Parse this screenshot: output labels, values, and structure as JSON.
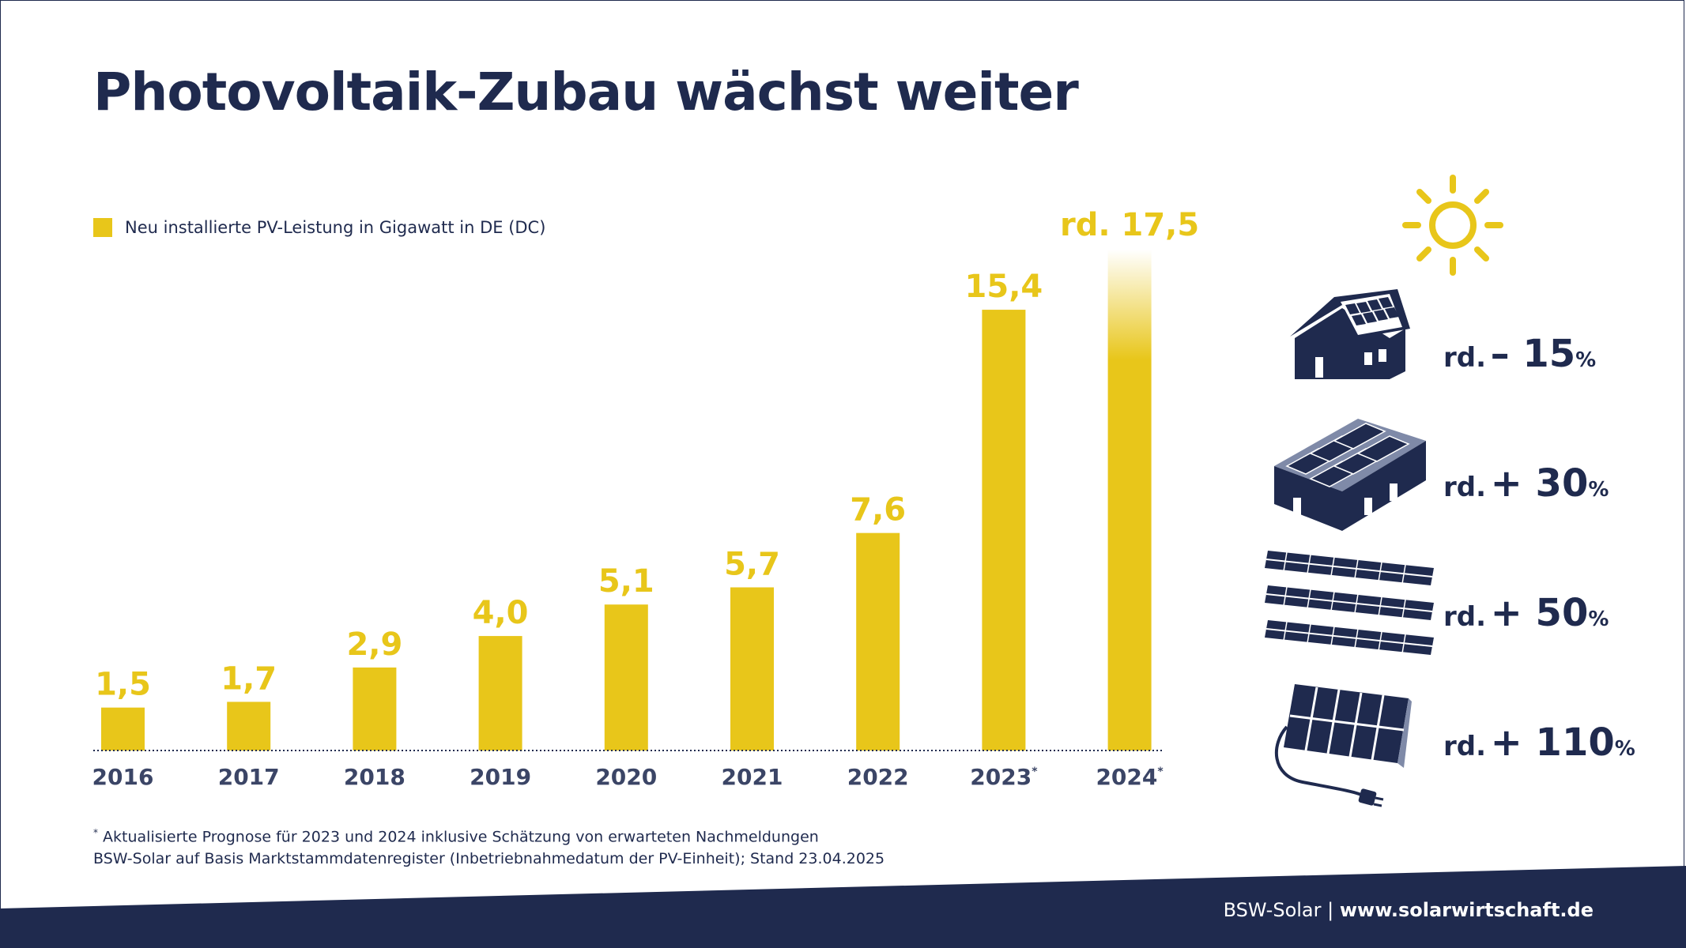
{
  "title": "Photovoltaik-Zubau wächst weiter",
  "legend_label": "Neu installierte PV-Leistung in Gigawatt in DE (DC)",
  "colors": {
    "bar": "#e8c61a",
    "navy": "#1f2a4e",
    "year_text": "#3b4566"
  },
  "chart_data": {
    "type": "bar",
    "categories": [
      "2016",
      "2017",
      "2018",
      "2019",
      "2020",
      "2021",
      "2022",
      "2023*",
      "2024*"
    ],
    "values": [
      1.5,
      1.7,
      2.9,
      4.0,
      5.1,
      5.7,
      7.6,
      15.4,
      17.5
    ],
    "value_labels": [
      "1,5",
      "1,7",
      "2,9",
      "4,0",
      "5,1",
      "5,7",
      "7,6",
      "15,4",
      "rd. 17,5"
    ],
    "series": [
      {
        "name": "Neu installierte PV-Leistung in Gigawatt in DE (DC)",
        "values": [
          1.5,
          1.7,
          2.9,
          4.0,
          5.1,
          5.7,
          7.6,
          15.4,
          17.5
        ]
      }
    ],
    "ylim": [
      0,
      17.5
    ],
    "grid": false,
    "legend_position": "top-left",
    "last_bar_faded_top": true
  },
  "footnote": {
    "marker": "*",
    "line1": "Aktualisierte Prognose für 2023 und 2024 inklusive Schätzung von erwarteten Nachmeldungen",
    "line2": "BSW-Solar auf Basis Marktstammdatenregister (Inbetriebnahmedatum der PV-Einheit); Stand 23.04.2025"
  },
  "segments": [
    {
      "icon": "house-rooftop-pv-icon",
      "prefix": "rd.",
      "value": "– 15",
      "unit": "%"
    },
    {
      "icon": "commercial-rooftop-pv-icon",
      "prefix": "rd.",
      "value": "+ 30",
      "unit": "%"
    },
    {
      "icon": "ground-mounted-pv-icon",
      "prefix": "rd.",
      "value": "+ 50",
      "unit": "%"
    },
    {
      "icon": "balcony-pv-plug-icon",
      "prefix": "rd.",
      "value": "+ 110",
      "unit": "%"
    }
  ],
  "footer": {
    "org": "BSW-Solar",
    "separator": "|",
    "url": "www.solarwirtschaft.de"
  }
}
